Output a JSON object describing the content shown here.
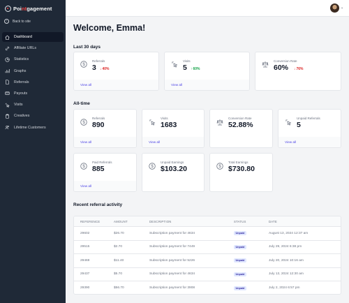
{
  "app": {
    "logo_prefix": "Poi",
    "logo_accent": "nt",
    "logo_suffix": "gagement",
    "back_label": "Back to site"
  },
  "sidebar": {
    "items": [
      {
        "label": "Dashboard",
        "icon": "home-icon",
        "active": true
      },
      {
        "label": "Affiliate URLs",
        "icon": "link-icon"
      },
      {
        "label": "Statistics",
        "icon": "chart-pie-icon"
      },
      {
        "label": "Graphs",
        "icon": "bar-chart-icon"
      },
      {
        "label": "Referrals",
        "icon": "document-icon"
      },
      {
        "label": "Payouts",
        "icon": "credit-card-icon"
      },
      {
        "label": "Visits",
        "icon": "cursor-click-icon"
      },
      {
        "label": "Creatives",
        "icon": "clipboard-icon"
      },
      {
        "label": "Lifetime Customers",
        "icon": "users-icon"
      }
    ]
  },
  "header": {
    "avatar": "user-avatar",
    "caret": "⌄"
  },
  "main": {
    "welcome": "Welcome, Emma!",
    "last30": {
      "title": "Last 30 days",
      "cards": [
        {
          "label": "Referrals",
          "value": "3",
          "change": "40%",
          "direction": "down",
          "footer": "View all"
        },
        {
          "label": "Visits",
          "value": "5",
          "change": "60%",
          "direction": "up",
          "footer": "View all"
        },
        {
          "label": "Conversion Rate",
          "value": "60%",
          "change": "76%",
          "direction": "down"
        }
      ]
    },
    "alltime": {
      "title": "All-time",
      "cards": [
        {
          "label": "Referrals",
          "value": "890",
          "footer": "View all"
        },
        {
          "label": "Visits",
          "value": "1683",
          "footer": "View all"
        },
        {
          "label": "Conversion Rate",
          "value": "52.88%"
        },
        {
          "label": "Unpaid Referrals",
          "value": "5",
          "footer": "View all"
        },
        {
          "label": "Paid Referrals",
          "value": "885",
          "footer": "View all"
        },
        {
          "label": "Unpaid Earnings",
          "value": "$103.20"
        },
        {
          "label": "Total Earnings",
          "value": "$730.80"
        }
      ]
    },
    "recent": {
      "title": "Recent referral activity",
      "columns": [
        "REFERENCE",
        "AMOUNT",
        "DESCRIPTION",
        "STATUS",
        "DATE"
      ],
      "rows": [
        {
          "reference": "29602",
          "amount": "$26.70",
          "description": "Subscription payment for 4634",
          "status": "Unpaid",
          "date": "August 13, 2024 12:37 am"
        },
        {
          "reference": "29515",
          "amount": "$2.70",
          "description": "Subscription payment for 7449",
          "status": "Unpaid",
          "date": "July 29, 2024 6:38 pm"
        },
        {
          "reference": "29469",
          "amount": "$11.40",
          "description": "Subscription payment for 5226",
          "status": "Unpaid",
          "date": "July 20, 2024 10:16 am"
        },
        {
          "reference": "29437",
          "amount": "$5.70",
          "description": "Subscription payment for 4634",
          "status": "Unpaid",
          "date": "July 13, 2024 12:30 am"
        },
        {
          "reference": "29390",
          "amount": "$56.70",
          "description": "Subscription payment for 3908",
          "status": "Unpaid",
          "date": "July 2, 2024 6:57 pm"
        }
      ]
    }
  },
  "colors": {
    "sidebar": "#1f2937",
    "accent": "#4f46e5",
    "down": "#dc2626",
    "up": "#16a34a",
    "badge_bg": "#e0e7ff"
  }
}
